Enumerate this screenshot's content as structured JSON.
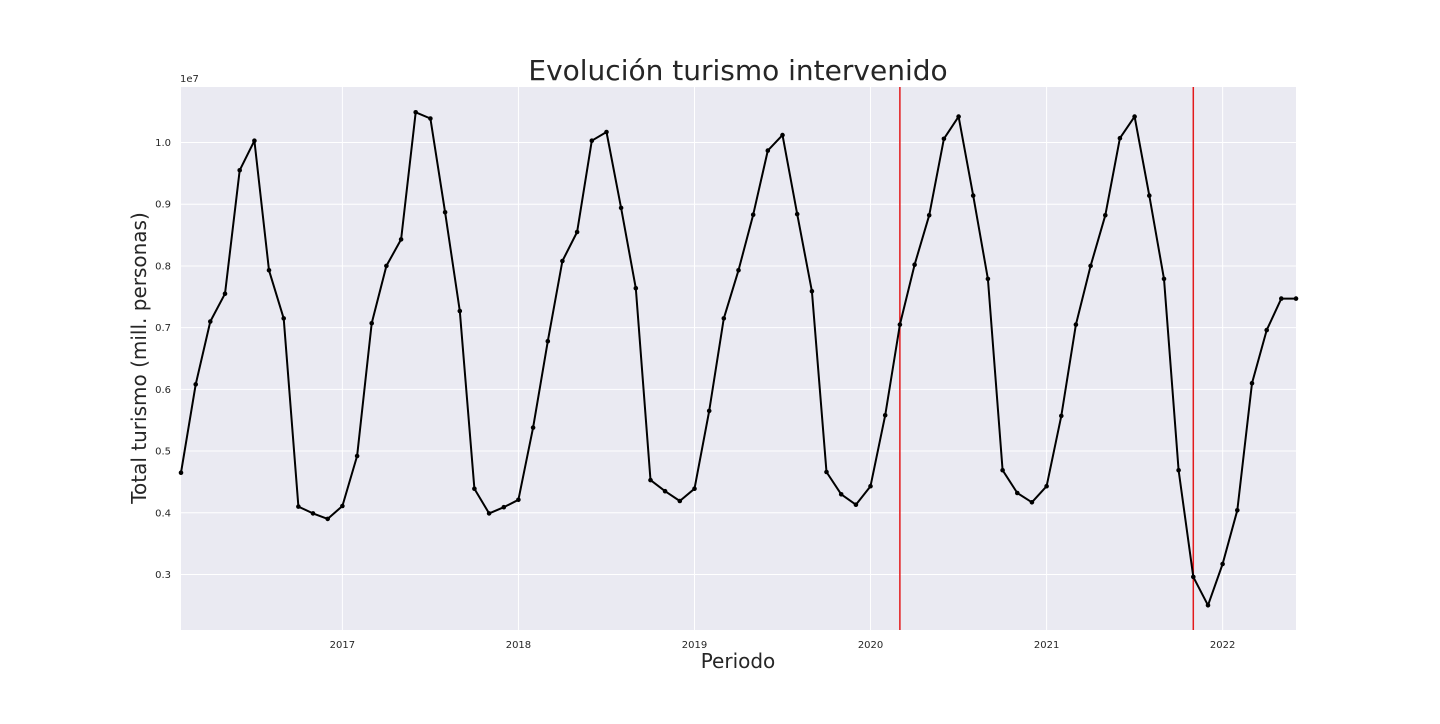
{
  "chart_data": {
    "type": "line",
    "title": "Evolución turismo intervenido",
    "xlabel": "Periodo",
    "ylabel": "Total turismo (mill. personas)",
    "y_offset_label": "1e7",
    "x_tick_labels": [
      "2017",
      "2018",
      "2019",
      "2020",
      "2021",
      "2022"
    ],
    "y_tick_labels": [
      "0.3",
      "0.4",
      "0.5",
      "0.6",
      "0.7",
      "0.8",
      "0.9",
      "1.0"
    ],
    "y_ticks": [
      3000000,
      4000000,
      5000000,
      6000000,
      7000000,
      8000000,
      9000000,
      10000000
    ],
    "xlim": [
      "2016-02",
      "2022-06"
    ],
    "ylim": [
      2100000,
      10900000
    ],
    "grid": true,
    "background": "#eaeaf2",
    "line_color": "#000000",
    "vlines": [
      {
        "x": "2020-03",
        "color": "#e31a1c"
      },
      {
        "x": "2021-11",
        "color": "#e31a1c"
      }
    ],
    "series": [
      {
        "x": [
          "2016-02",
          "2016-03",
          "2016-04",
          "2016-05",
          "2016-06",
          "2016-07",
          "2016-08",
          "2016-09",
          "2016-10",
          "2016-11",
          "2016-12",
          "2017-01",
          "2017-02",
          "2017-03",
          "2017-04",
          "2017-05",
          "2017-06",
          "2017-07",
          "2017-08",
          "2017-09",
          "2017-10",
          "2017-11",
          "2017-12",
          "2018-01",
          "2018-02",
          "2018-03",
          "2018-04",
          "2018-05",
          "2018-06",
          "2018-07",
          "2018-08",
          "2018-09",
          "2018-10",
          "2018-11",
          "2018-12",
          "2019-01",
          "2019-02",
          "2019-03",
          "2019-04",
          "2019-05",
          "2019-06",
          "2019-07",
          "2019-08",
          "2019-09",
          "2019-10",
          "2019-11",
          "2019-12",
          "2020-01",
          "2020-02",
          "2020-03",
          "2020-04",
          "2020-05",
          "2020-06",
          "2020-07",
          "2020-08",
          "2020-09",
          "2020-10",
          "2020-11",
          "2020-12",
          "2021-01",
          "2021-02",
          "2021-03",
          "2021-04",
          "2021-05",
          "2021-06",
          "2021-07",
          "2021-08",
          "2021-09",
          "2021-10",
          "2021-11",
          "2021-12",
          "2022-01",
          "2022-02",
          "2022-03",
          "2022-04",
          "2022-05",
          "2022-06"
        ],
        "values": [
          4650000,
          6080000,
          7100000,
          7550000,
          9550000,
          10030000,
          7930000,
          7150000,
          4100000,
          3990000,
          3900000,
          4110000,
          4920000,
          7070000,
          8000000,
          8430000,
          10490000,
          10390000,
          8870000,
          7270000,
          4390000,
          3990000,
          4090000,
          4210000,
          5380000,
          6780000,
          8080000,
          8550000,
          10030000,
          10170000,
          8940000,
          7640000,
          4530000,
          4350000,
          4190000,
          4390000,
          5650000,
          7150000,
          7930000,
          8830000,
          9870000,
          10120000,
          8840000,
          7590000,
          4660000,
          4300000,
          4130000,
          4430000,
          5580000,
          7050000,
          8020000,
          8820000,
          10060000,
          10420000,
          9140000,
          7790000,
          4690000,
          4320000,
          4170000,
          4430000,
          5570000,
          7050000,
          8000000,
          8820000,
          10070000,
          10420000,
          9140000,
          7790000,
          4690000,
          2960000,
          2500000,
          3170000,
          4040000,
          6100000,
          6960000,
          7470000,
          7470000
        ]
      }
    ]
  }
}
